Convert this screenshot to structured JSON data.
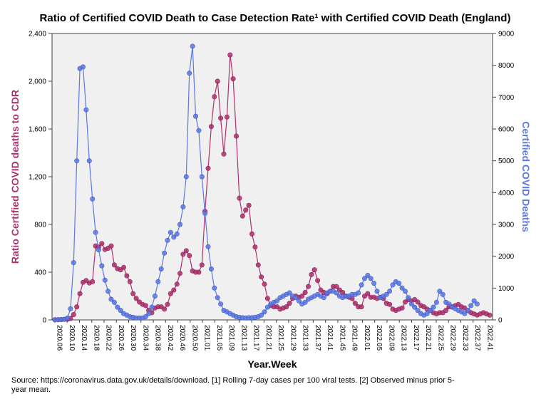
{
  "chart_data": {
    "type": "line",
    "title": "Ratio of Certified COVID Death to Case Detection Rate¹ with Certified COVID Death (England)",
    "xlabel": "Year.Week",
    "ylabel_left": "Ratio Certified COVID deaths to CDR",
    "ylabel_right": "Certified COVID Deaths",
    "ylim_left": [
      0,
      2400
    ],
    "ylim_right": [
      0,
      9000
    ],
    "yticks_left": [
      "0",
      "400",
      "800",
      "1,200",
      "1,600",
      "2,000",
      "2,400"
    ],
    "yticks_right": [
      "0",
      "1000",
      "2000",
      "3000",
      "4000",
      "5000",
      "6000",
      "7000",
      "8000",
      "9000"
    ],
    "x_tick_labels": [
      "2020.06",
      "2020.10",
      "2020.14",
      "2020.18",
      "2020.22",
      "2020.26",
      "2020.30",
      "2020.34",
      "2020.38",
      "2020.42",
      "2020.46",
      "2020.50",
      "2021.01",
      "2021.05",
      "2021.09",
      "2021.13",
      "2021.17",
      "2021.21",
      "2021.25",
      "2021.29",
      "2021.33",
      "2021.37",
      "2021.41",
      "2021.45",
      "2021.49",
      "2022.01",
      "2022.05",
      "2022.09",
      "2022.13",
      "2022.17",
      "2022.21",
      "2022.25",
      "2022.29",
      "2022.33",
      "2022.37",
      "2022.41"
    ],
    "grid": false,
    "series": [
      {
        "axis": "left",
        "color": "#b0306f",
        "values": [
          2,
          2,
          3,
          4,
          6,
          12,
          45,
          110,
          220,
          315,
          330,
          310,
          320,
          620,
          610,
          640,
          590,
          600,
          620,
          460,
          430,
          420,
          440,
          370,
          320,
          220,
          180,
          150,
          130,
          120,
          80,
          60,
          100,
          110,
          110,
          90,
          130,
          220,
          250,
          300,
          390,
          550,
          580,
          540,
          410,
          400,
          400,
          460,
          910,
          1270,
          1620,
          1870,
          2000,
          1690,
          1390,
          1700,
          2220,
          2020,
          1540,
          1020,
          870,
          920,
          960,
          720,
          610,
          460,
          360,
          300,
          180,
          120,
          110,
          110,
          90,
          100,
          110,
          140,
          180,
          200,
          190,
          200,
          230,
          280,
          380,
          420,
          330,
          250,
          230,
          220,
          240,
          280,
          280,
          250,
          230,
          200,
          190,
          180,
          140,
          110,
          110,
          200,
          220,
          190,
          190,
          180,
          190,
          180,
          140,
          130,
          90,
          80,
          90,
          100,
          150,
          170,
          160,
          170,
          150,
          120,
          110,
          90,
          80,
          60,
          50,
          60,
          60,
          80,
          110,
          110,
          120,
          130,
          110,
          100,
          80,
          60,
          50,
          40,
          50,
          60,
          50,
          40
        ]
      },
      {
        "axis": "right",
        "color": "#5b78e3",
        "values": [
          5,
          5,
          10,
          20,
          60,
          350,
          1800,
          5000,
          7900,
          7950,
          6600,
          5000,
          3800,
          2750,
          2200,
          1700,
          1250,
          900,
          650,
          550,
          400,
          300,
          200,
          150,
          100,
          80,
          60,
          60,
          60,
          100,
          200,
          400,
          750,
          1200,
          1600,
          2100,
          2500,
          2750,
          2600,
          2700,
          3000,
          3550,
          4500,
          7750,
          8600,
          6400,
          5950,
          4500,
          3350,
          2300,
          1600,
          1000,
          700,
          500,
          300,
          250,
          200,
          150,
          100,
          80,
          70,
          60,
          70,
          70,
          80,
          100,
          150,
          250,
          400,
          500,
          550,
          600,
          700,
          750,
          800,
          850,
          750,
          700,
          600,
          500,
          550,
          650,
          700,
          750,
          800,
          750,
          700,
          850,
          900,
          900,
          850,
          750,
          700,
          750,
          750,
          800,
          800,
          850,
          1100,
          1300,
          1400,
          1300,
          1150,
          900,
          700,
          750,
          800,
          900,
          1100,
          1200,
          1150,
          1000,
          900,
          700,
          500,
          400,
          300,
          200,
          150,
          200,
          300,
          400,
          550,
          900,
          800,
          550,
          500,
          400,
          350,
          300,
          250,
          200,
          300,
          450,
          600,
          500
        ]
      }
    ]
  },
  "footnote": "Source: https://coronavirus.data.gov.uk/details/download. [1] Rolling 7-day cases per 100 viral tests. [2] Observed minus prior 5-year mean."
}
